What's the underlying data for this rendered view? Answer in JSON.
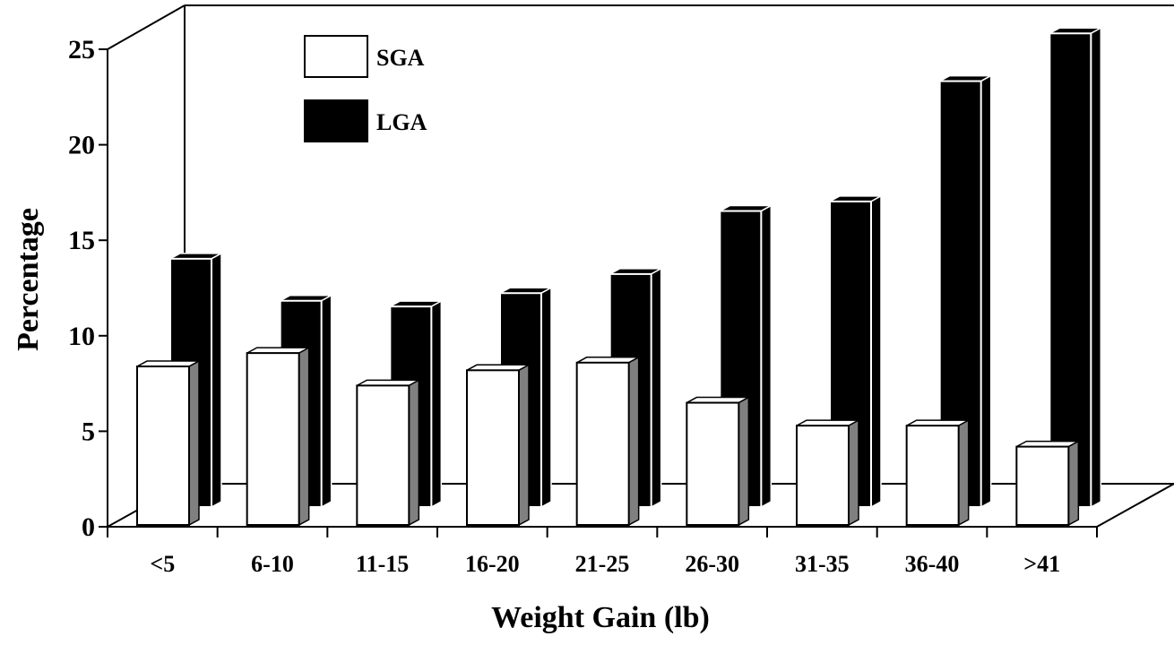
{
  "chart_data": {
    "type": "bar",
    "title": "",
    "xlabel": "Weight Gain (lb)",
    "ylabel": "Percentage",
    "categories": [
      "<5",
      "6-10",
      "11-15",
      "16-20",
      "21-25",
      "26-30",
      "31-35",
      "36-40",
      ">41"
    ],
    "series": [
      {
        "name": "SGA",
        "values": [
          8.3,
          9.0,
          7.3,
          8.1,
          8.5,
          6.4,
          5.2,
          5.2,
          4.1
        ],
        "color": "#ffffff"
      },
      {
        "name": "LGA",
        "values": [
          13.0,
          10.8,
          10.5,
          11.2,
          12.2,
          15.5,
          16.0,
          22.3,
          24.8
        ],
        "color": "#000000"
      }
    ],
    "yticks": [
      0,
      5,
      10,
      15,
      20,
      25
    ],
    "ylim": [
      0,
      25
    ],
    "grid": false,
    "legend_position": "top-left",
    "style": "3d-bars",
    "side_color": "#808080"
  }
}
